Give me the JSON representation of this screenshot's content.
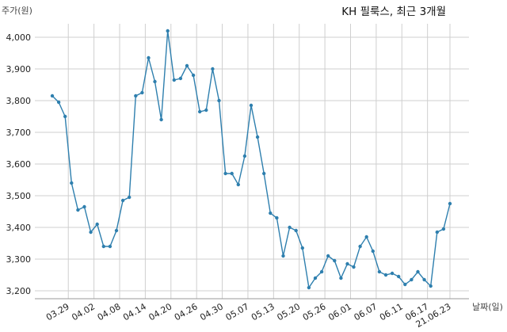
{
  "chart_data": {
    "type": "line",
    "title": "KH 필룩스, 최근 3개월",
    "ylabel": "주가(원)",
    "xlabel": "날짜(일)",
    "ylim": [
      3180,
      4060
    ],
    "yticks": [
      3200,
      3300,
      3400,
      3500,
      3600,
      3700,
      3800,
      3900,
      4000
    ],
    "ytick_labels": [
      "3,200",
      "3,300",
      "3,400",
      "3,500",
      "3,600",
      "3,700",
      "3,800",
      "3,900",
      "4,000"
    ],
    "xticks": [
      {
        "label": "03.29",
        "index": 2.5
      },
      {
        "label": "04.02",
        "index": 6.5
      },
      {
        "label": "04.08",
        "index": 10.5
      },
      {
        "label": "04.14",
        "index": 14.5
      },
      {
        "label": "04.20",
        "index": 18.5
      },
      {
        "label": "04.26",
        "index": 22.5
      },
      {
        "label": "04.30",
        "index": 26.5
      },
      {
        "label": "05.07",
        "index": 30.5
      },
      {
        "label": "05.13",
        "index": 34.5
      },
      {
        "label": "05.20",
        "index": 38.5
      },
      {
        "label": "05.26",
        "index": 42.5
      },
      {
        "label": "06.01",
        "index": 46.5
      },
      {
        "label": "06.07",
        "index": 50.5
      },
      {
        "label": "06.11",
        "index": 54.5
      },
      {
        "label": "06.17",
        "index": 58.5
      },
      {
        "label": "21.06.23",
        "index": 62.0
      }
    ],
    "grid": true,
    "line_color": "#2e7fae",
    "series": [
      {
        "values": [
          3815,
          3795,
          3750,
          3540,
          3455,
          3465,
          3385,
          3410,
          3340,
          3340,
          3390,
          3485,
          3495,
          3815,
          3825,
          3935,
          3860,
          3740,
          4020,
          3865,
          3870,
          3910,
          3880,
          3765,
          3770,
          3900,
          3800,
          3570,
          3570,
          3535,
          3625,
          3785,
          3685,
          3570,
          3445,
          3430,
          3310,
          3400,
          3390,
          3335,
          3210,
          3240,
          3260,
          3310,
          3295,
          3240,
          3285,
          3275,
          3340,
          3370,
          3325,
          3260,
          3250,
          3255,
          3245,
          3220,
          3235,
          3260,
          3235,
          3215,
          3385,
          3395,
          3475
        ]
      }
    ]
  }
}
